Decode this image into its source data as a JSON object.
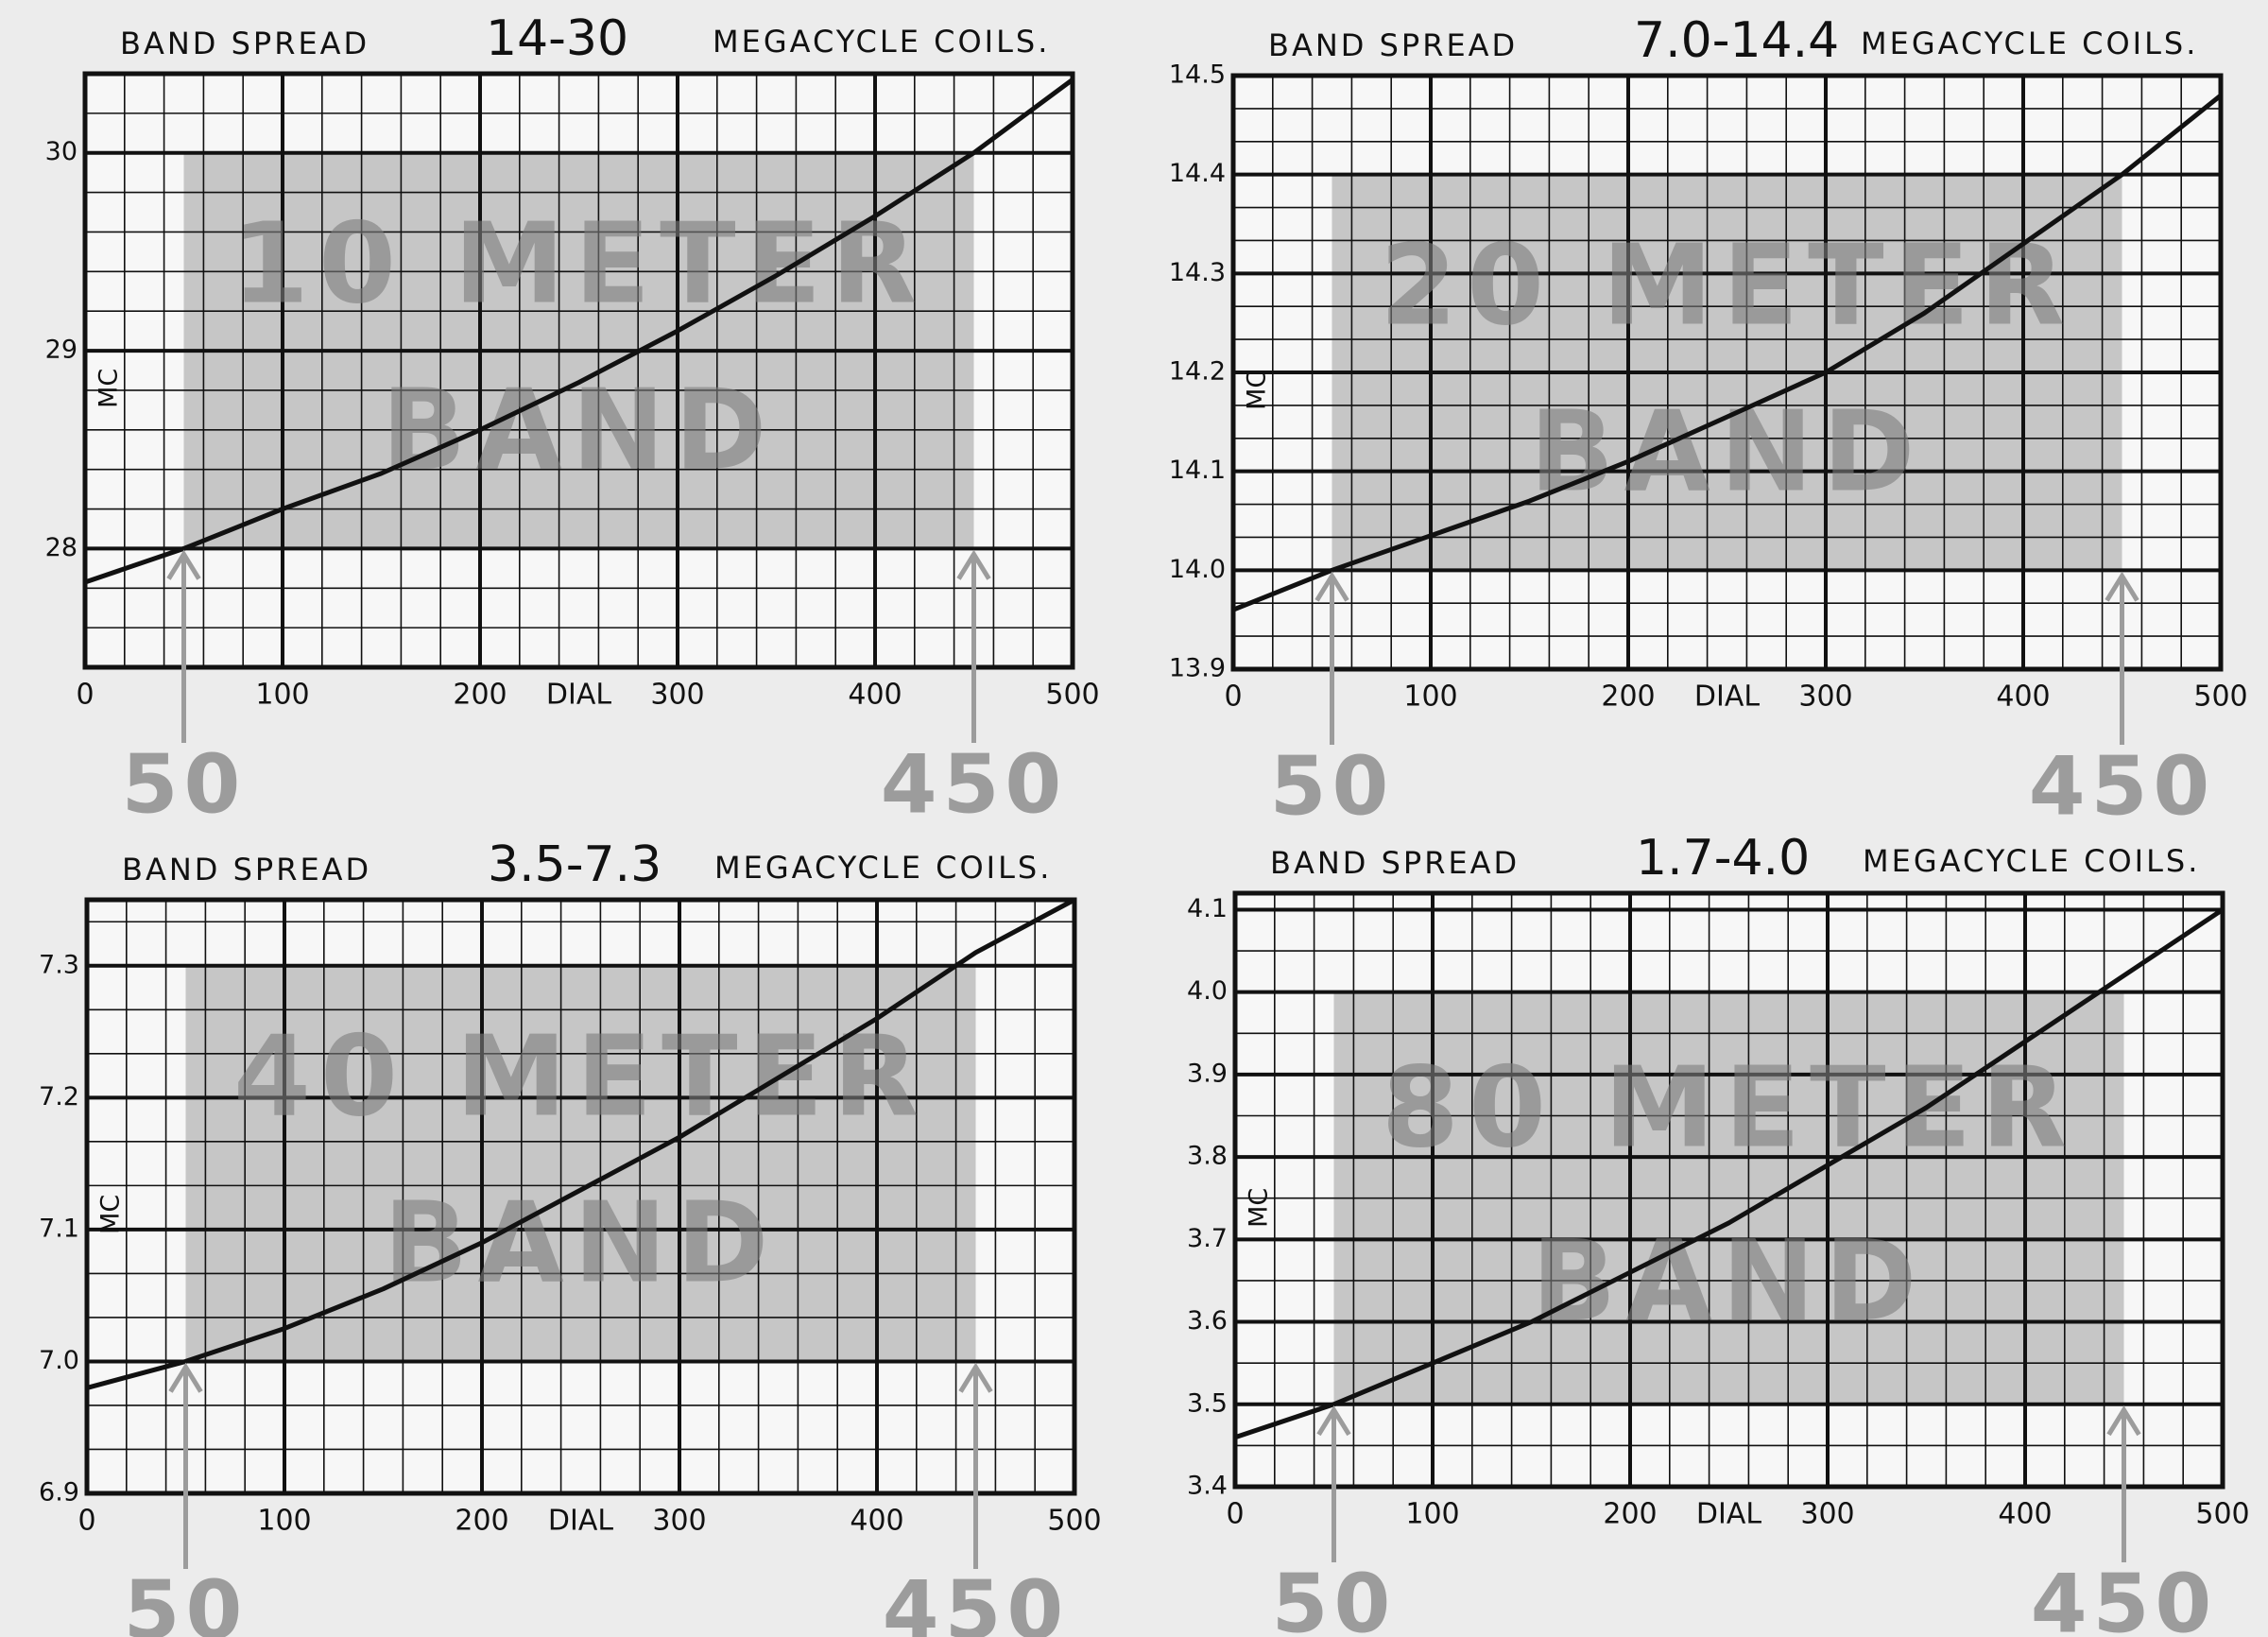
{
  "chart_data": [
    {
      "type": "line",
      "title_left": "BAND SPREAD",
      "title": "14-30",
      "title_right": "MEGACYCLE COILS.",
      "x_label": "DIAL",
      "y_label": "MC",
      "watermark": [
        "10 METER",
        "BAND"
      ],
      "markers": [
        50,
        450
      ],
      "shaded_ylim": [
        28,
        30
      ],
      "x": [
        0,
        50,
        100,
        150,
        200,
        250,
        300,
        350,
        400,
        450,
        500
      ],
      "series": [
        {
          "color": "#111111",
          "values": [
            27.83,
            28.0,
            28.2,
            28.38,
            28.6,
            28.84,
            29.1,
            29.38,
            29.68,
            30.0,
            30.37
          ]
        }
      ],
      "xlim": [
        0,
        500
      ],
      "xticks": [
        0,
        100,
        200,
        300,
        400,
        500
      ],
      "ylim": [
        27.4,
        30.4
      ],
      "yticks": [
        28,
        29,
        30
      ],
      "grid": true
    },
    {
      "type": "line",
      "title_left": "BAND SPREAD",
      "title": "7.0-14.4",
      "title_right": "MEGACYCLE COILS.",
      "x_label": "DIAL",
      "y_label": "MC",
      "watermark": [
        "20 METER",
        "BAND"
      ],
      "markers": [
        50,
        450
      ],
      "shaded_ylim": [
        14.0,
        14.4
      ],
      "x": [
        0,
        50,
        100,
        150,
        200,
        250,
        300,
        350,
        400,
        450,
        500
      ],
      "series": [
        {
          "color": "#111111",
          "values": [
            13.96,
            14.0,
            14.035,
            14.07,
            14.11,
            14.155,
            14.2,
            14.26,
            14.33,
            14.4,
            14.48
          ]
        }
      ],
      "xlim": [
        0,
        500
      ],
      "xticks": [
        0,
        100,
        200,
        300,
        400,
        500
      ],
      "ylim": [
        13.9,
        14.5
      ],
      "yticks": [
        13.9,
        {
          "value": 14,
          "label": "14.0"
        },
        14.1,
        14.2,
        14.3,
        14.4,
        14.5
      ],
      "grid": true
    },
    {
      "type": "line",
      "title_left": "BAND SPREAD",
      "title": "3.5-7.3",
      "title_right": "MEGACYCLE COILS.",
      "x_label": "DIAL",
      "y_label": "MC",
      "watermark": [
        "40 METER",
        "BAND"
      ],
      "markers": [
        50,
        450
      ],
      "shaded_ylim": [
        7.0,
        7.3
      ],
      "x": [
        0,
        50,
        100,
        150,
        200,
        250,
        300,
        350,
        400,
        450,
        500
      ],
      "series": [
        {
          "color": "#111111",
          "values": [
            6.98,
            7.0,
            7.025,
            7.055,
            7.09,
            7.13,
            7.17,
            7.215,
            7.26,
            7.31,
            7.35
          ]
        }
      ],
      "xlim": [
        0,
        500
      ],
      "xticks": [
        0,
        100,
        200,
        300,
        400,
        500
      ],
      "ylim": [
        6.9,
        7.35
      ],
      "yticks": [
        6.9,
        {
          "value": 7,
          "label": "7.0"
        },
        7.1,
        7.2,
        7.3
      ],
      "grid": true
    },
    {
      "type": "line",
      "title_left": "BAND SPREAD",
      "title": "1.7-4.0",
      "title_right": "MEGACYCLE COILS.",
      "x_label": "DIAL",
      "y_label": "MC",
      "watermark": [
        "80 METER",
        "BAND"
      ],
      "markers": [
        50,
        450
      ],
      "shaded_ylim": [
        3.5,
        4.0
      ],
      "x": [
        0,
        50,
        100,
        150,
        200,
        250,
        300,
        350,
        400,
        450,
        500
      ],
      "series": [
        {
          "color": "#111111",
          "values": [
            3.46,
            3.5,
            3.55,
            3.6,
            3.66,
            3.72,
            3.79,
            3.86,
            3.94,
            4.02,
            4.1
          ]
        }
      ],
      "xlim": [
        0,
        500
      ],
      "xticks": [
        0,
        100,
        200,
        300,
        400,
        500
      ],
      "ylim": [
        3.4,
        4.12
      ],
      "yticks": [
        3.4,
        3.5,
        3.6,
        3.7,
        3.8,
        3.9,
        {
          "value": 4,
          "label": "4.0"
        },
        4.1
      ],
      "grid": true
    }
  ]
}
